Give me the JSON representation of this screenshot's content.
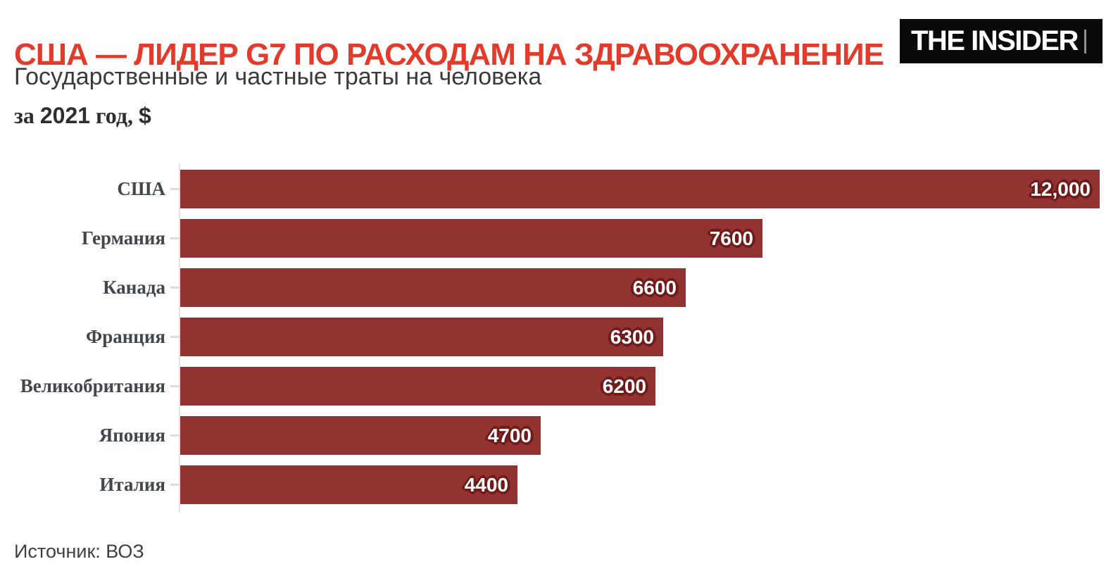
{
  "header": {
    "title": "США — ЛИДЕР G7 ПО РАСХОДАМ НА ЗДРАВООХРАНЕНИЕ",
    "subtitle": "Государственные и частные траты на человека",
    "period": {
      "full": "за 2021 год, $",
      "parts": [
        {
          "text": "за ",
          "font": "serif"
        },
        {
          "text": "2021",
          "font": "sans"
        },
        {
          "text": " год, ",
          "font": "serif"
        },
        {
          "text": "$",
          "font": "sans"
        }
      ]
    },
    "logo_text": "THE INSIDER"
  },
  "footer": {
    "source": "Источник: ВОЗ"
  },
  "colors": {
    "title_red": "#e23b2c",
    "bar_red": "#923331",
    "value_outline": "#6e1b1b",
    "label_gray": "#42464d",
    "axis_gray": "#e2e2e2",
    "logo_bg": "#0a0a0a"
  },
  "chart_data": {
    "type": "bar",
    "orientation": "horizontal",
    "title": "США — ЛИДЕР G7 ПО РАСХОДАМ НА ЗДРАВООХРАНЕНИЕ",
    "subtitle": "Государственные и частные траты на человека",
    "period_label": "за 2021 год, $",
    "unit": "$",
    "year": "2021",
    "categories": [
      "США",
      "Германия",
      "Канада",
      "Франция",
      "Великобритания",
      "Япония",
      "Италия"
    ],
    "values": [
      12000,
      7600,
      6600,
      6300,
      6200,
      4700,
      4400
    ],
    "value_labels": [
      "12,000",
      "7600",
      "6600",
      "6300",
      "6200",
      "4700",
      "4400"
    ],
    "xlim": [
      0,
      12000
    ],
    "grid": false,
    "legend": false,
    "value_labels_position": "inside-end",
    "source": "Источник: ВОЗ"
  }
}
